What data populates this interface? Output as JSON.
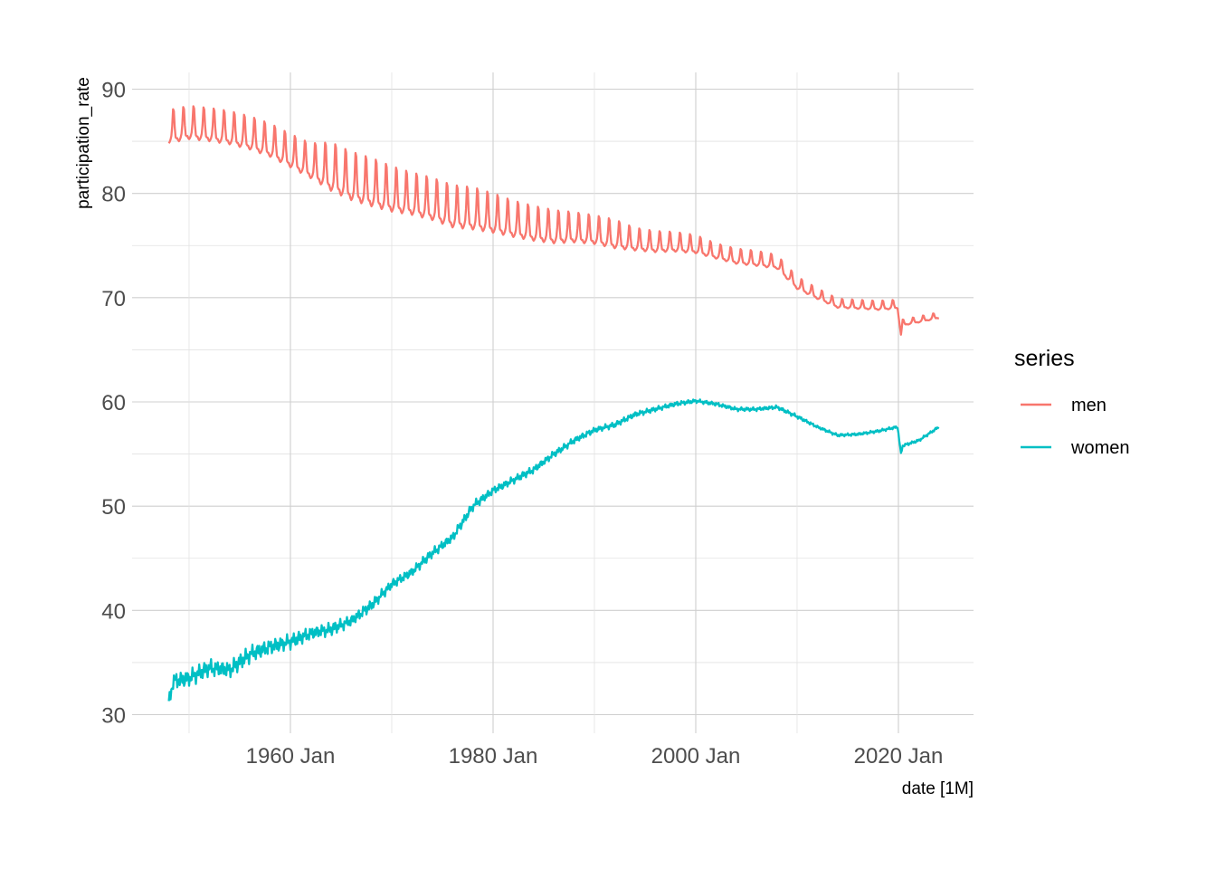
{
  "chart_data": {
    "type": "line",
    "xlabel": "date [1M]",
    "ylabel": "participation_rate",
    "x_ticks": [
      "1960 Jan",
      "1980 Jan",
      "2000 Jan",
      "2020 Jan"
    ],
    "y_ticks": [
      "30",
      "40",
      "50",
      "60",
      "70",
      "80",
      "90"
    ],
    "xlim": [
      "1948-01",
      "2024-01"
    ],
    "ylim": [
      30,
      90
    ],
    "grid": true,
    "legend": {
      "title": "series",
      "position": "right"
    },
    "series": [
      {
        "name": "men",
        "color": "#F8766D",
        "x": [
          "1948-01",
          "1950-01",
          "1952-01",
          "1954-01",
          "1956-01",
          "1958-01",
          "1960-01",
          "1962-01",
          "1964-01",
          "1966-01",
          "1968-01",
          "1970-01",
          "1972-01",
          "1974-01",
          "1976-01",
          "1978-01",
          "1980-01",
          "1982-01",
          "1984-01",
          "1986-01",
          "1988-01",
          "1990-01",
          "1992-01",
          "1994-01",
          "1996-01",
          "1998-01",
          "2000-01",
          "2002-01",
          "2004-01",
          "2006-01",
          "2008-01",
          "2010-01",
          "2012-01",
          "2014-01",
          "2016-01",
          "2018-01",
          "2019-12",
          "2020-04",
          "2020-06",
          "2022-01",
          "2024-01"
        ],
        "values": [
          85.8,
          86.2,
          86.0,
          85.7,
          85.2,
          84.5,
          83.5,
          82.5,
          81.7,
          80.8,
          80.2,
          79.6,
          79.2,
          78.7,
          78.0,
          77.8,
          77.4,
          76.9,
          76.5,
          76.2,
          76.2,
          76.0,
          75.6,
          75.2,
          75.0,
          75.0,
          74.8,
          74.2,
          73.7,
          73.5,
          73.2,
          71.2,
          70.2,
          69.3,
          69.2,
          69.1,
          69.2,
          66.5,
          67.5,
          67.8,
          68.2
        ],
        "amplitude": [
          2.2,
          2.2,
          2.2,
          2.2,
          2.2,
          2.2,
          2.2,
          2.3,
          3.2,
          3.2,
          3.2,
          3.0,
          2.8,
          2.8,
          2.8,
          2.8,
          2.6,
          2.4,
          2.3,
          2.2,
          2.0,
          1.9,
          1.9,
          1.5,
          1.4,
          1.3,
          1.2,
          1.0,
          1.0,
          1.0,
          0.9,
          0.8,
          0.7,
          0.6,
          0.6,
          0.6,
          0.6,
          0.3,
          0.4,
          0.4,
          0.4
        ]
      },
      {
        "name": "women",
        "color": "#00BFC4",
        "x": [
          "1948-01",
          "1948-06",
          "1950-01",
          "1952-01",
          "1954-01",
          "1956-01",
          "1958-01",
          "1960-01",
          "1962-01",
          "1964-01",
          "1966-01",
          "1968-01",
          "1970-01",
          "1972-01",
          "1974-01",
          "1976-01",
          "1978-01",
          "1980-01",
          "1982-01",
          "1984-01",
          "1986-01",
          "1988-01",
          "1990-01",
          "1992-01",
          "1994-01",
          "1996-01",
          "1998-01",
          "2000-01",
          "2002-01",
          "2004-01",
          "2006-01",
          "2008-01",
          "2010-01",
          "2012-01",
          "2014-01",
          "2016-01",
          "2018-01",
          "2019-12",
          "2020-04",
          "2020-06",
          "2022-01",
          "2024-01"
        ],
        "values": [
          31.0,
          33.2,
          33.5,
          34.5,
          34.3,
          35.8,
          36.5,
          37.0,
          37.8,
          38.2,
          39.0,
          40.5,
          42.5,
          43.7,
          45.5,
          47.0,
          50.0,
          51.5,
          52.5,
          53.5,
          55.0,
          56.3,
          57.3,
          57.8,
          58.8,
          59.3,
          59.8,
          60.1,
          59.8,
          59.3,
          59.3,
          59.5,
          58.6,
          57.6,
          56.8,
          56.9,
          57.2,
          57.6,
          55.0,
          55.8,
          56.3,
          57.6
        ],
        "amplitude": [
          0.9,
          0.9,
          0.9,
          0.9,
          0.9,
          0.9,
          0.8,
          0.8,
          0.7,
          0.7,
          0.6,
          0.6,
          0.5,
          0.5,
          0.5,
          0.5,
          0.5,
          0.4,
          0.4,
          0.4,
          0.35,
          0.35,
          0.3,
          0.3,
          0.3,
          0.25,
          0.25,
          0.2,
          0.2,
          0.2,
          0.2,
          0.2,
          0.2,
          0.15,
          0.15,
          0.15,
          0.15,
          0.15,
          0.15,
          0.15,
          0.15,
          0.15
        ]
      }
    ]
  }
}
